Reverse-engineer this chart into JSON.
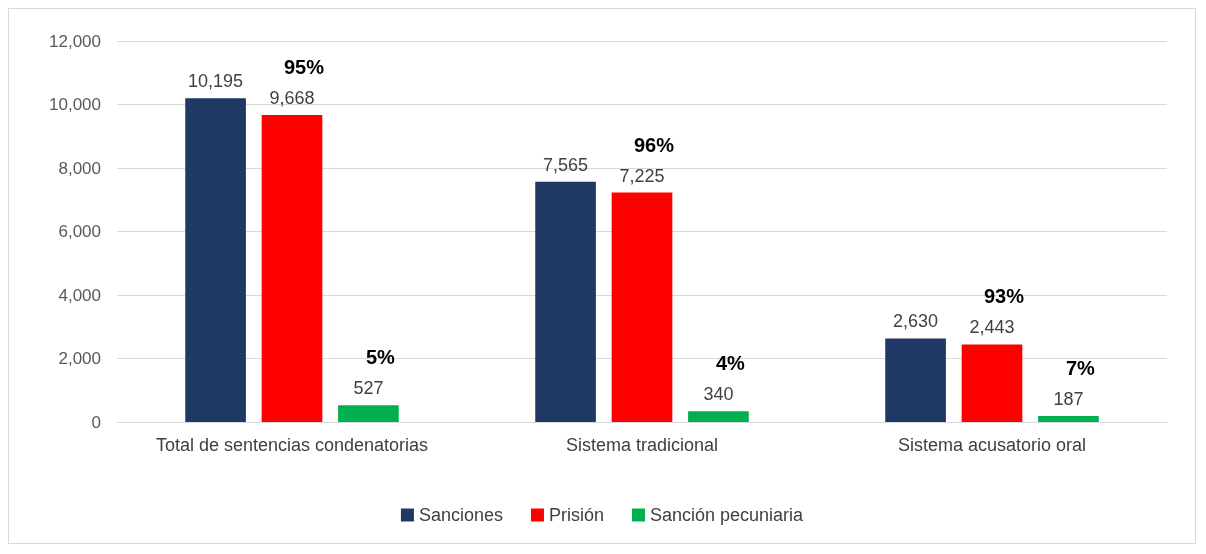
{
  "chart_data": {
    "type": "bar",
    "categories": [
      "Total de sentencias condenatorias",
      "Sistema tradicional",
      "Sistema acusatorio oral"
    ],
    "series": [
      {
        "name": "Sanciones",
        "color": "#203864",
        "values": [
          10195,
          7565,
          2630
        ],
        "value_labels": [
          "10,195",
          "7,565",
          "2,630"
        ]
      },
      {
        "name": "Prisión",
        "color": "#ff0000",
        "values": [
          9668,
          7225,
          2443
        ],
        "value_labels": [
          "9,668",
          "7,225",
          "2,443"
        ]
      },
      {
        "name": "Sanción pecuniaria",
        "color": "#00b050",
        "values": [
          527,
          340,
          187
        ],
        "value_labels": [
          "527",
          "340",
          "187"
        ]
      }
    ],
    "ylim": [
      0,
      12000
    ],
    "yticks": [
      {
        "value": 0,
        "label": "0"
      },
      {
        "value": 2000,
        "label": "2,000"
      },
      {
        "value": 4000,
        "label": "4,000"
      },
      {
        "value": 6000,
        "label": "6,000"
      },
      {
        "value": 8000,
        "label": "8,000"
      },
      {
        "value": 10000,
        "label": "10,000"
      },
      {
        "value": 12000,
        "label": "12,000"
      }
    ],
    "grid": "y",
    "legend": "bottom",
    "annotations": [
      "95%",
      "5%",
      "96%",
      "4%",
      "93%",
      "7%"
    ]
  }
}
